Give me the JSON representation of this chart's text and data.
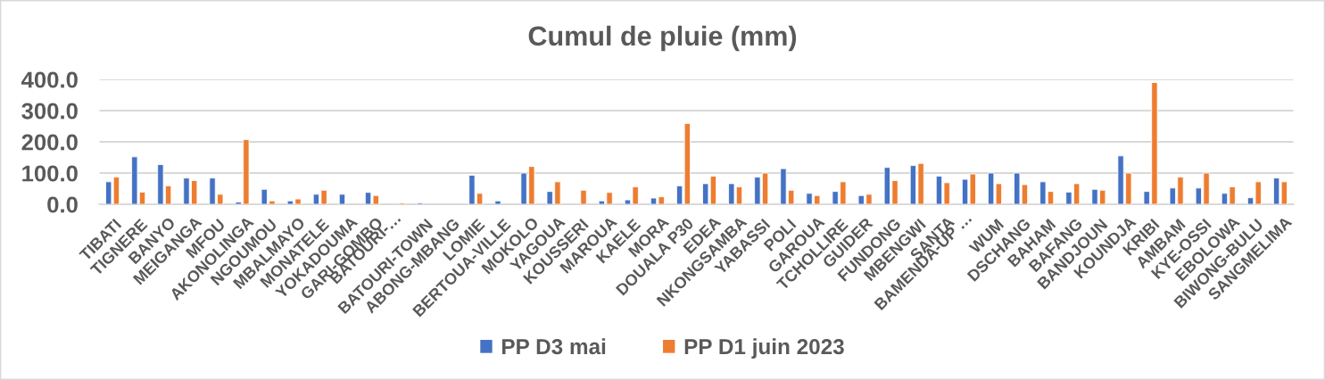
{
  "chart_data": {
    "type": "bar",
    "title": "Cumul de pluie (mm)",
    "categories": [
      "TIBATI",
      "TIGNERE",
      "BANYO",
      "MEIGANGA",
      "MFOU",
      "AKONOLINGA",
      "NGOUMOU",
      "MBALMAYO",
      "MONATELE",
      "YOKADOUMA",
      "GARI-GOMBO",
      "BATOURI-…",
      "BATOURI-TOWN",
      "ABONG-MBANG",
      "LOMIE",
      "BERTOUA-VILLE",
      "MOKOLO",
      "YAGOUA",
      "KOUSSERI",
      "MAROUA",
      "KAELE",
      "MORA",
      "DOUALA P30",
      "EDEA",
      "NKONGSAMBA",
      "YABASSI",
      "POLI",
      "GAROUA",
      "TCHOLLIRE",
      "GUIDER",
      "FUNDONG",
      "MBENGWI",
      "SANTA",
      "BAMENDA-UP …",
      "WUM",
      "DSCHANG",
      "BAHAM",
      "BAFANG",
      "BANDJOUN",
      "KOUNDJA",
      "KRIBI",
      "AMBAM",
      "KYE-OSSI",
      "EBOLOWA",
      "BIWONG-BULU",
      "SANGMELIMA"
    ],
    "series": [
      {
        "name": "PP D3 mai",
        "color": "#4472c4",
        "values": [
          72,
          152,
          127,
          84,
          84,
          7,
          48,
          11,
          32,
          32,
          38,
          null,
          4,
          null,
          93,
          11,
          100,
          41,
          null,
          11,
          14,
          20,
          59,
          66,
          66,
          87,
          114,
          35,
          41,
          28,
          118,
          124,
          90,
          80,
          100,
          100,
          72,
          39,
          48,
          155,
          41,
          52,
          52,
          35,
          21,
          84
        ]
      },
      {
        "name": "PP D1 juin 2023",
        "color": "#ed7d31",
        "values": [
          87,
          39,
          59,
          76,
          32,
          207,
          11,
          17,
          45,
          null,
          28,
          4,
          null,
          null,
          35,
          null,
          121,
          72,
          45,
          38,
          56,
          24,
          259,
          90,
          56,
          100,
          45,
          28,
          72,
          32,
          76,
          131,
          69,
          97,
          66,
          63,
          41,
          66,
          45,
          100,
          390,
          87,
          100,
          56,
          72,
          72
        ]
      }
    ],
    "ylim": [
      0,
      400
    ],
    "yticks": [
      {
        "value": 0,
        "label": "0.0"
      },
      {
        "value": 100,
        "label": "100.0"
      },
      {
        "value": 200,
        "label": "200.0"
      },
      {
        "value": 300,
        "label": "300.0"
      },
      {
        "value": 400,
        "label": "400.0"
      }
    ],
    "grid": "y",
    "legend": "bottom"
  }
}
